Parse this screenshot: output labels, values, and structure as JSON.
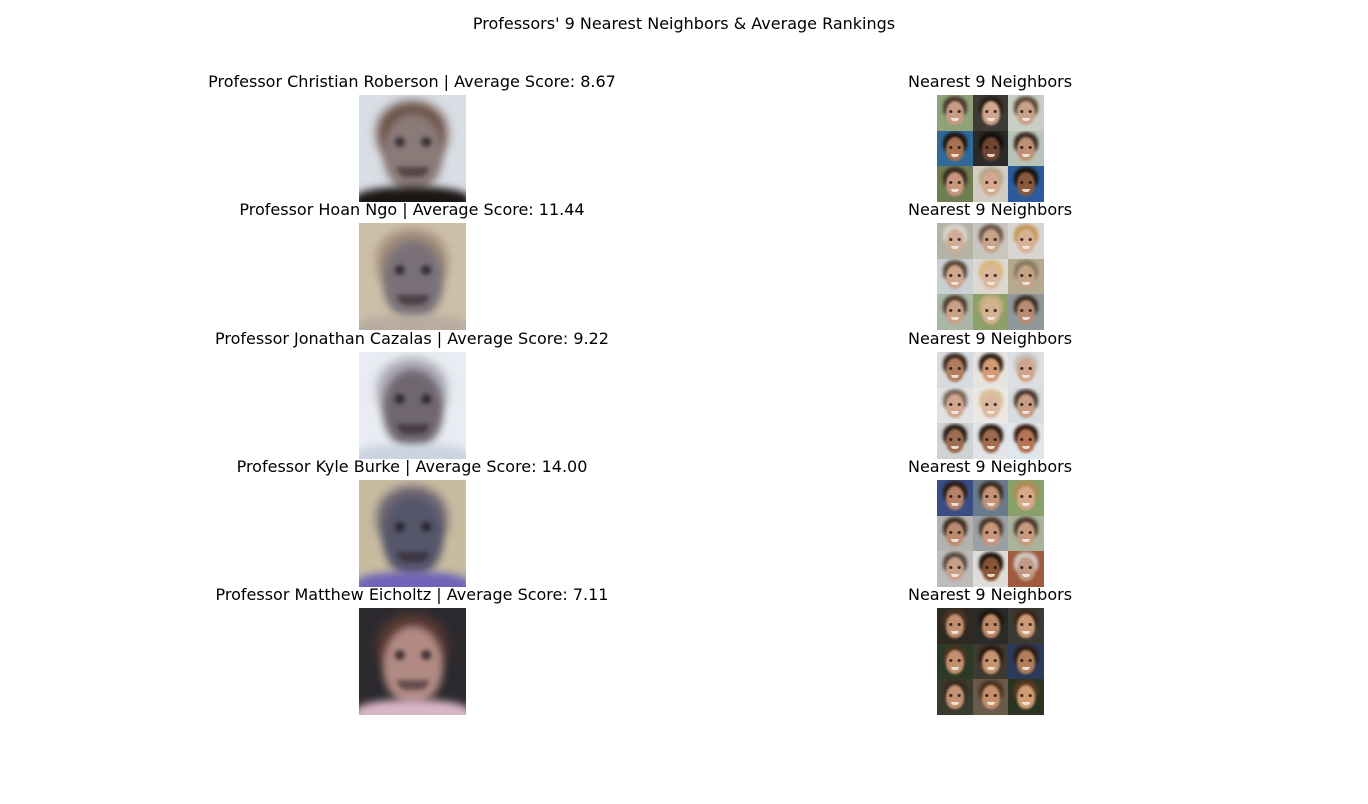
{
  "figure": {
    "suptitle": "Professors' 9 Nearest Neighbors & Average Rankings"
  },
  "rows": [
    {
      "title": "Professor Christian Roberson | Average Score: 8.67",
      "neighbors_title": "Nearest 9 Neighbors",
      "face": {
        "bg": "#d9dde4",
        "hair": "#6a5044",
        "skin": "#8a7a78",
        "shirt": "#1b1614"
      },
      "neighbors": [
        {
          "bg": "#8fa27a",
          "hair": "#4a3a2e",
          "skin": "#c79b84"
        },
        {
          "bg": "#3e3a36",
          "hair": "#2a2018",
          "skin": "#d0a68c"
        },
        {
          "bg": "#c7cfc5",
          "hair": "#5e4b3a",
          "skin": "#caa18a"
        },
        {
          "bg": "#2f6a9a",
          "hair": "#1e140f",
          "skin": "#a8714f"
        },
        {
          "bg": "#2b2a2a",
          "hair": "#120e0c",
          "skin": "#6e4630"
        },
        {
          "bg": "#b9c4b8",
          "hair": "#3a2b22",
          "skin": "#c09076"
        },
        {
          "bg": "#6f7d52",
          "hair": "#3a2a20",
          "skin": "#c8977e"
        },
        {
          "bg": "#d2cdc3",
          "hair": "#b7a58c",
          "skin": "#d4a98f"
        },
        {
          "bg": "#2c5b9c",
          "hair": "#1a120e",
          "skin": "#8a5a3e"
        }
      ]
    },
    {
      "title": "Professor Hoan Ngo | Average Score: 11.44",
      "neighbors_title": "Nearest 9 Neighbors",
      "face": {
        "bg": "#cdbfa8",
        "hair": "#9c8a78",
        "skin": "#7a7178",
        "shirt": "#b8aca0"
      },
      "neighbors": [
        {
          "bg": "#b6b2a6",
          "hair": "#d8d4cc",
          "skin": "#d0ad95"
        },
        {
          "bg": "#c9c6c0",
          "hair": "#6c5a48",
          "skin": "#c9a28a"
        },
        {
          "bg": "#d8d5d0",
          "hair": "#c49a5a",
          "skin": "#d7b194"
        },
        {
          "bg": "#c8d0d4",
          "hair": "#5a4636",
          "skin": "#cfa68e"
        },
        {
          "bg": "#dcd8d2",
          "hair": "#d9b87c",
          "skin": "#dcb79e"
        },
        {
          "bg": "#b5a990",
          "hair": "#8a7a62",
          "skin": "#c6a287"
        },
        {
          "bg": "#aab6a6",
          "hair": "#4e3e30",
          "skin": "#caa086"
        },
        {
          "bg": "#8ea06a",
          "hair": "#c9b07e",
          "skin": "#d5b194"
        },
        {
          "bg": "#8f989a",
          "hair": "#3e3026",
          "skin": "#b98c72"
        }
      ]
    },
    {
      "title": "Professor Jonathan Cazalas | Average Score: 9.22",
      "neighbors_title": "Nearest 9 Neighbors",
      "face": {
        "bg": "#e9ecf2",
        "hair": "#a8a6b0",
        "skin": "#6f6670",
        "shirt": "#c9d3e2"
      },
      "neighbors": [
        {
          "bg": "#d6dbe0",
          "hair": "#3c2c22",
          "skin": "#b27d5f"
        },
        {
          "bg": "#e7e4e0",
          "hair": "#2c2018",
          "skin": "#d29a72"
        },
        {
          "bg": "#dcdfe2",
          "hair": "#c5c0b8",
          "skin": "#d0a48c"
        },
        {
          "bg": "#e0e2e4",
          "hair": "#7a6a58",
          "skin": "#d0a68e"
        },
        {
          "bg": "#ebe8e4",
          "hair": "#d8c298",
          "skin": "#dcb79f"
        },
        {
          "bg": "#d8dce0",
          "hair": "#4a3a30",
          "skin": "#c99c84"
        },
        {
          "bg": "#cfd3d6",
          "hair": "#2a1e18",
          "skin": "#9e6c50"
        },
        {
          "bg": "#e2e4e8",
          "hair": "#2a1e16",
          "skin": "#a06a4c"
        },
        {
          "bg": "#dfe6ec",
          "hair": "#3a1e16",
          "skin": "#b47456"
        }
      ]
    },
    {
      "title": "Professor Kyle Burke | Average Score: 14.00",
      "neighbors_title": "Nearest 9 Neighbors",
      "face": {
        "bg": "#c7bba0",
        "hair": "#6a6270",
        "skin": "#55566a",
        "shirt": "#6e63b8"
      },
      "neighbors": [
        {
          "bg": "#3a4e86",
          "hair": "#2a1e16",
          "skin": "#b58065"
        },
        {
          "bg": "#6a7a8a",
          "hair": "#3a2c22",
          "skin": "#c49274"
        },
        {
          "bg": "#88a06a",
          "hair": "#b08a52",
          "skin": "#d8a88a"
        },
        {
          "bg": "#b4b2ae",
          "hair": "#3e2e24",
          "skin": "#bc8a6e"
        },
        {
          "bg": "#9aa0a4",
          "hair": "#4a382c",
          "skin": "#c89678"
        },
        {
          "bg": "#aab29c",
          "hair": "#4c3a2c",
          "skin": "#c79a7e"
        },
        {
          "bg": "#bcbcbc",
          "hair": "#5a4a3e",
          "skin": "#c8a08a"
        },
        {
          "bg": "#e0ddd8",
          "hair": "#1e140e",
          "skin": "#8a5436"
        },
        {
          "bg": "#a05a3e",
          "hair": "#cfcac4",
          "skin": "#c09a84"
        }
      ]
    },
    {
      "title": "Professor Matthew Eicholtz | Average Score: 7.11",
      "neighbors_title": "Nearest 9 Neighbors",
      "face": {
        "bg": "#2c2a2e",
        "hair": "#5a3a34",
        "skin": "#b28a84",
        "shirt": "#d9b6c6"
      },
      "neighbors": [
        {
          "bg": "#2e2a22",
          "hair": "#4a3424",
          "skin": "#c2906e"
        },
        {
          "bg": "#2a2a26",
          "hair": "#1e1612",
          "skin": "#c08a68"
        },
        {
          "bg": "#3a3a34",
          "hair": "#3a2618",
          "skin": "#cc9a76"
        },
        {
          "bg": "#2a3a26",
          "hair": "#4a3422",
          "skin": "#c3906c"
        },
        {
          "bg": "#3e3a32",
          "hair": "#2a1a10",
          "skin": "#c89470"
        },
        {
          "bg": "#2e3a5a",
          "hair": "#2a1c14",
          "skin": "#b07e5c"
        },
        {
          "bg": "#3a3a2e",
          "hair": "#3a2a1e",
          "skin": "#c49272"
        },
        {
          "bg": "#6a5a4a",
          "hair": "#4a3222",
          "skin": "#c6906c"
        },
        {
          "bg": "#2a3420",
          "hair": "#5a3a22",
          "skin": "#d09c72"
        }
      ]
    }
  ]
}
